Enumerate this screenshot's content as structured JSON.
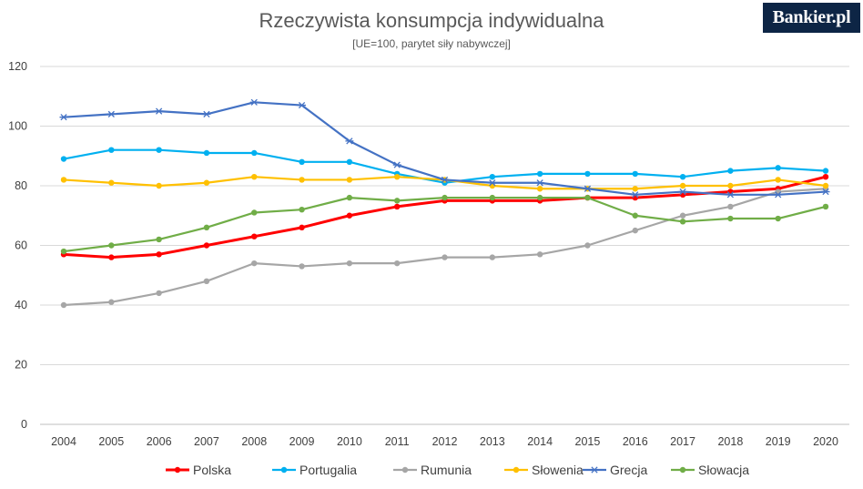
{
  "logo_text": "Bankier.pl",
  "chart_data": {
    "type": "line",
    "title": "Rzeczywista konsumpcja indywidualna",
    "subtitle": "[UE=100, parytet siły nabywczej]",
    "xlabel": "",
    "ylabel": "",
    "ylim": [
      0,
      120
    ],
    "yticks": [
      0,
      20,
      40,
      60,
      80,
      100,
      120
    ],
    "grid": true,
    "legend_position": "bottom",
    "categories": [
      "2004",
      "2005",
      "2006",
      "2007",
      "2008",
      "2009",
      "2010",
      "2011",
      "2012",
      "2013",
      "2014",
      "2015",
      "2016",
      "2017",
      "2018",
      "2019",
      "2020"
    ],
    "series": [
      {
        "name": "Polska",
        "color": "#ff0000",
        "marker": "circle",
        "values": [
          57,
          56,
          57,
          60,
          63,
          66,
          70,
          73,
          75,
          75,
          75,
          76,
          76,
          77,
          78,
          79,
          83
        ]
      },
      {
        "name": "Portugalia",
        "color": "#00b0f0",
        "marker": "circle",
        "values": [
          89,
          92,
          92,
          91,
          91,
          88,
          88,
          84,
          81,
          83,
          84,
          84,
          84,
          83,
          85,
          86,
          85
        ]
      },
      {
        "name": "Rumunia",
        "color": "#a6a6a6",
        "marker": "circle",
        "values": [
          40,
          41,
          44,
          48,
          54,
          53,
          54,
          54,
          56,
          56,
          57,
          60,
          65,
          70,
          73,
          78,
          79
        ]
      },
      {
        "name": "Słowenia",
        "color": "#ffc000",
        "marker": "circle",
        "values": [
          82,
          81,
          80,
          81,
          83,
          82,
          82,
          83,
          82,
          80,
          79,
          79,
          79,
          80,
          80,
          82,
          80
        ]
      },
      {
        "name": "Grecja",
        "color": "#4472c4",
        "marker": "star",
        "values": [
          103,
          104,
          105,
          104,
          108,
          107,
          95,
          87,
          82,
          81,
          81,
          79,
          77,
          78,
          77,
          77,
          78
        ]
      },
      {
        "name": "Słowacja",
        "color": "#70ad47",
        "marker": "circle",
        "values": [
          58,
          60,
          62,
          66,
          71,
          72,
          76,
          75,
          76,
          76,
          76,
          76,
          70,
          68,
          69,
          69,
          73
        ]
      }
    ]
  }
}
